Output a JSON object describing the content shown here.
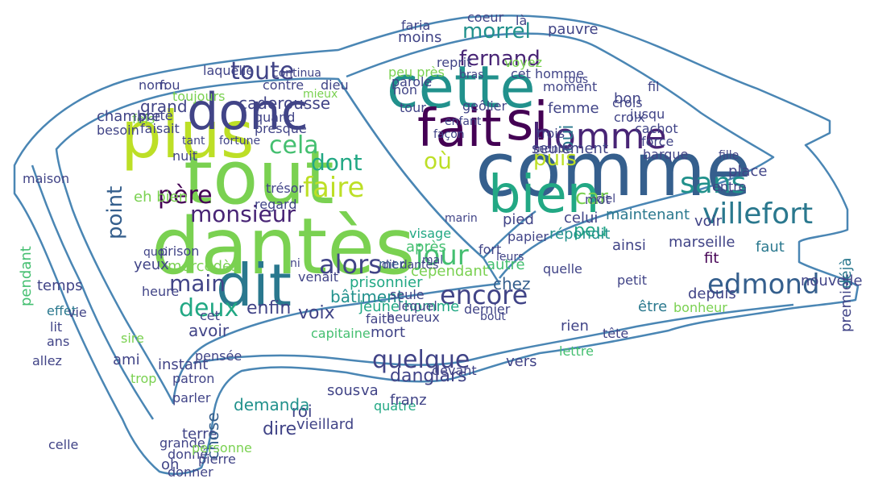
{
  "colors": {
    "outline": "#4a86b4",
    "palette": [
      "#440154",
      "#482475",
      "#414487",
      "#355f8d",
      "#2a788e",
      "#21918c",
      "#22a884",
      "#44bf70",
      "#7ad151",
      "#bddf26"
    ]
  },
  "words": [
    {
      "text": "comme",
      "color": "#355f8d"
    },
    {
      "text": "dantès",
      "color": "#7ad151"
    },
    {
      "text": "tout",
      "color": "#7ad151"
    },
    {
      "text": "plus",
      "color": "#bddf26"
    },
    {
      "text": "dit",
      "color": "#2a788e"
    },
    {
      "text": "cette",
      "color": "#21918c"
    },
    {
      "text": "fait",
      "color": "#440154"
    },
    {
      "text": "si",
      "color": "#440154"
    },
    {
      "text": "donc",
      "color": "#414487"
    },
    {
      "text": "bien",
      "color": "#22a884"
    },
    {
      "text": "homme",
      "color": "#482475"
    },
    {
      "text": "villefort",
      "color": "#2a788e"
    },
    {
      "text": "edmond",
      "color": "#355f8d"
    },
    {
      "text": "encore",
      "color": "#414487"
    },
    {
      "text": "quelque",
      "color": "#414487"
    },
    {
      "text": "alors",
      "color": "#414487"
    },
    {
      "text": "faire",
      "color": "#bddf26"
    },
    {
      "text": "jour",
      "color": "#44bf70"
    },
    {
      "text": "sans",
      "color": "#21918c"
    },
    {
      "text": "morrel",
      "color": "#21918c"
    },
    {
      "text": "toute",
      "color": "#414487"
    },
    {
      "text": "deux",
      "color": "#22a884"
    },
    {
      "text": "monsieur",
      "color": "#482475"
    },
    {
      "text": "cela",
      "color": "#44bf70"
    },
    {
      "text": "père",
      "color": "#440154"
    },
    {
      "text": "main",
      "color": "#414487"
    },
    {
      "text": "fernand",
      "color": "#482475"
    },
    {
      "text": "dont",
      "color": "#22a884"
    },
    {
      "text": "puis",
      "color": "#bddf26"
    },
    {
      "text": "car",
      "color": "#7ad151"
    },
    {
      "text": "point",
      "color": "#355f8d"
    },
    {
      "text": "oui",
      "color": "#2a788e"
    },
    {
      "text": "où",
      "color": "#bddf26"
    },
    {
      "text": "peu",
      "color": "#22a884"
    },
    {
      "text": "caderousse",
      "color": "#414487"
    },
    {
      "text": "mercédès",
      "color": "#7ad151"
    },
    {
      "text": "bâtiment",
      "color": "#21918c"
    },
    {
      "text": "prisonnier",
      "color": "#22a884"
    },
    {
      "text": "jeune homme",
      "color": "#22a884"
    },
    {
      "text": "cependant",
      "color": "#7ad151"
    },
    {
      "text": "danglars",
      "color": "#414487"
    },
    {
      "text": "enfin",
      "color": "#414487"
    },
    {
      "text": "voix",
      "color": "#414487"
    },
    {
      "text": "avoir",
      "color": "#414487"
    },
    {
      "text": "chez",
      "color": "#355f8d"
    },
    {
      "text": "après",
      "color": "#44bf70"
    },
    {
      "text": "mer",
      "color": "#355f8d"
    },
    {
      "text": "seulement",
      "color": "#414487"
    },
    {
      "text": "maintenant",
      "color": "#2a788e"
    },
    {
      "text": "celui",
      "color": "#414487"
    },
    {
      "text": "répondit",
      "color": "#21918c"
    },
    {
      "text": "ainsi",
      "color": "#414487"
    },
    {
      "text": "marseille",
      "color": "#414487"
    },
    {
      "text": "voir",
      "color": "#414487"
    },
    {
      "text": "faut",
      "color": "#2a788e"
    },
    {
      "text": "fit",
      "color": "#440154"
    },
    {
      "text": "nouvelle",
      "color": "#414487"
    },
    {
      "text": "premier",
      "color": "#414487"
    },
    {
      "text": "déjà",
      "color": "#2a788e"
    },
    {
      "text": "depuis",
      "color": "#414487"
    },
    {
      "text": "être",
      "color": "#2a788e"
    },
    {
      "text": "rien",
      "color": "#414487"
    },
    {
      "text": "lettre",
      "color": "#44bf70"
    },
    {
      "text": "vers",
      "color": "#414487"
    },
    {
      "text": "devant",
      "color": "#414487"
    },
    {
      "text": "sous",
      "color": "#414487"
    },
    {
      "text": "quatre",
      "color": "#22a884"
    },
    {
      "text": "dire",
      "color": "#414487"
    },
    {
      "text": "vieillard",
      "color": "#414487"
    },
    {
      "text": "roi",
      "color": "#414487"
    },
    {
      "text": "demanda",
      "color": "#21918c"
    },
    {
      "text": "terre",
      "color": "#414487"
    },
    {
      "text": "oh",
      "color": "#414487"
    },
    {
      "text": "instant",
      "color": "#414487"
    },
    {
      "text": "patron",
      "color": "#414487"
    },
    {
      "text": "chose",
      "color": "#355f8d"
    },
    {
      "text": "ami",
      "color": "#414487"
    },
    {
      "text": "temps",
      "color": "#414487"
    },
    {
      "text": "effet",
      "color": "#2a788e"
    },
    {
      "text": "lit",
      "color": "#414487"
    },
    {
      "text": "ans",
      "color": "#414487"
    },
    {
      "text": "pendant",
      "color": "#44bf70"
    },
    {
      "text": "maison",
      "color": "#414487"
    },
    {
      "text": "grand",
      "color": "#414487"
    },
    {
      "text": "fois",
      "color": "#7ad151"
    },
    {
      "text": "faisait",
      "color": "#414487"
    },
    {
      "text": "eh bien",
      "color": "#7ad151"
    },
    {
      "text": "yeux",
      "color": "#414487"
    },
    {
      "text": "prison",
      "color": "#414487"
    },
    {
      "text": "chambre",
      "color": "#414487"
    },
    {
      "text": "besoin",
      "color": "#414487"
    },
    {
      "text": "nom",
      "color": "#414487"
    },
    {
      "text": "fou",
      "color": "#414487"
    },
    {
      "text": "toujours",
      "color": "#7ad151"
    },
    {
      "text": "laquelle",
      "color": "#414487"
    },
    {
      "text": "contre",
      "color": "#414487"
    },
    {
      "text": "dieu",
      "color": "#414487"
    },
    {
      "text": "presque",
      "color": "#414487"
    },
    {
      "text": "quand",
      "color": "#414487"
    },
    {
      "text": "regard",
      "color": "#414487"
    },
    {
      "text": "moins",
      "color": "#414487"
    },
    {
      "text": "faria",
      "color": "#414487"
    },
    {
      "text": "pauvre",
      "color": "#414487"
    },
    {
      "text": "reprit",
      "color": "#414487"
    },
    {
      "text": "moment",
      "color": "#414487"
    },
    {
      "text": "femme",
      "color": "#414487"
    },
    {
      "text": "trois",
      "color": "#414487"
    },
    {
      "text": "monde",
      "color": "#414487"
    },
    {
      "text": "mort",
      "color": "#414487"
    },
    {
      "text": "faite",
      "color": "#414487"
    },
    {
      "text": "autre",
      "color": "#44bf70"
    },
    {
      "text": "pied",
      "color": "#414487"
    },
    {
      "text": "papier",
      "color": "#414487"
    },
    {
      "text": "bon",
      "color": "#414487"
    },
    {
      "text": "place",
      "color": "#414487"
    },
    {
      "text": "entre",
      "color": "#414487"
    },
    {
      "text": "fille",
      "color": "#414487"
    },
    {
      "text": "coeur",
      "color": "#414487"
    },
    {
      "text": "là",
      "color": "#414487"
    },
    {
      "text": "capitaine",
      "color": "#44bf70"
    },
    {
      "text": "heure",
      "color": "#414487"
    },
    {
      "text": "dernier",
      "color": "#414487"
    },
    {
      "text": "pensée",
      "color": "#414487"
    },
    {
      "text": "cet",
      "color": "#414487"
    },
    {
      "text": "dit dantès",
      "color": "#414487"
    },
    {
      "text": "vie",
      "color": "#414487"
    },
    {
      "text": "porte",
      "color": "#414487"
    },
    {
      "text": "mot",
      "color": "#414487"
    },
    {
      "text": "ciel",
      "color": "#414487"
    },
    {
      "text": "croix",
      "color": "#414487"
    },
    {
      "text": "bonheur",
      "color": "#7ad151"
    },
    {
      "text": "petit",
      "color": "#414487"
    },
    {
      "text": "sire",
      "color": "#7ad151"
    },
    {
      "text": "tête",
      "color": "#414487"
    },
    {
      "text": "parler",
      "color": "#414487"
    },
    {
      "text": "allez",
      "color": "#414487"
    },
    {
      "text": "venait",
      "color": "#414487"
    },
    {
      "text": "franz",
      "color": "#414487"
    },
    {
      "text": "va",
      "color": "#414487"
    },
    {
      "text": "geôlier",
      "color": "#414487"
    },
    {
      "text": "quelle",
      "color": "#414487"
    },
    {
      "text": "lequel",
      "color": "#414487"
    },
    {
      "text": "heureux",
      "color": "#414487"
    },
    {
      "text": "cachot",
      "color": "#414487"
    },
    {
      "text": "non",
      "color": "#414487"
    },
    {
      "text": "mieux",
      "color": "#7ad151"
    },
    {
      "text": "jusqu",
      "color": "#414487"
    },
    {
      "text": "crois",
      "color": "#414487"
    },
    {
      "text": "fil",
      "color": "#414487"
    },
    {
      "text": "force",
      "color": "#414487"
    },
    {
      "text": "barque",
      "color": "#414487"
    },
    {
      "text": "cet homme",
      "color": "#414487"
    },
    {
      "text": "bras",
      "color": "#414487"
    },
    {
      "text": "parole",
      "color": "#414487"
    },
    {
      "text": "peu près",
      "color": "#7ad151"
    },
    {
      "text": "voyez",
      "color": "#7ad151"
    },
    {
      "text": "enfant",
      "color": "#414487"
    },
    {
      "text": "tour",
      "color": "#414487"
    },
    {
      "text": "façon",
      "color": "#414487"
    },
    {
      "text": "visage",
      "color": "#22a884"
    },
    {
      "text": "leurs",
      "color": "#414487"
    },
    {
      "text": "marin",
      "color": "#414487"
    },
    {
      "text": "bout",
      "color": "#414487"
    },
    {
      "text": "trop",
      "color": "#7ad151"
    },
    {
      "text": "grande",
      "color": "#414487"
    },
    {
      "text": "donné",
      "color": "#414487"
    },
    {
      "text": "donner",
      "color": "#414487"
    },
    {
      "text": "personne",
      "color": "#7ad151"
    },
    {
      "text": "pierre",
      "color": "#414487"
    },
    {
      "text": "celle",
      "color": "#414487"
    },
    {
      "text": "trésor",
      "color": "#414487"
    },
    {
      "text": "nuit",
      "color": "#414487"
    },
    {
      "text": "tant",
      "color": "#414487"
    },
    {
      "text": "seule",
      "color": "#414487"
    },
    {
      "text": "mal",
      "color": "#414487"
    },
    {
      "text": "fort",
      "color": "#414487"
    },
    {
      "text": "fortune",
      "color": "#414487"
    },
    {
      "text": "continua",
      "color": "#414487"
    },
    {
      "text": "quoi",
      "color": "#414487"
    },
    {
      "text": "tous",
      "color": "#414487"
    },
    {
      "text": "ni",
      "color": "#414487"
    }
  ]
}
